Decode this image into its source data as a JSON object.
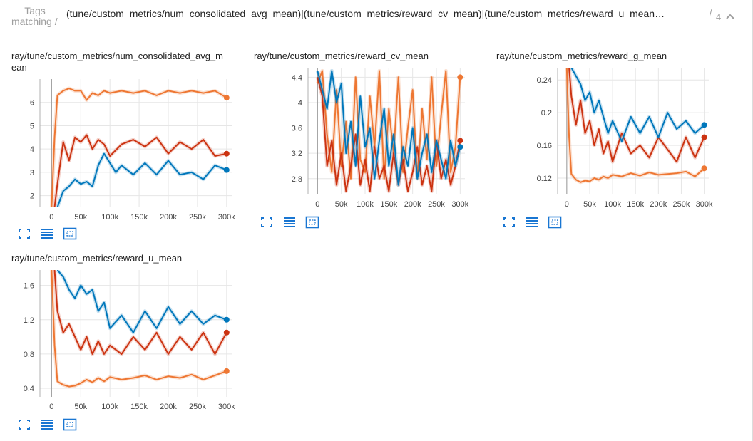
{
  "header": {
    "tags_label_line1": "Tags",
    "tags_label_line2": "matching /",
    "regex_value": "(tune/custom_metrics/num_consolidated_avg_mean)|(tune/custom_metrics/reward_cv_mean)|(tune/custom_metrics/reward_u_mean…",
    "slash": "/",
    "match_count": "4"
  },
  "colors": {
    "blue": "#0077bb",
    "red": "#cc3311",
    "orange": "#ee7733"
  },
  "icons": [
    "fullscreen-icon",
    "toggle-log-scale-icon",
    "fit-domain-icon"
  ],
  "chart_data": [
    {
      "type": "line",
      "title": "ray/tune/custom_metrics/num_consolidated_avg_mean",
      "title_line1": "ray/tune/custom_metrics/num_consolidated_avg_m",
      "title_line2": "ean",
      "xlim": [
        -20000,
        310000
      ],
      "ylim": [
        1.5,
        7.0
      ],
      "x_ticks": [
        0,
        50000,
        100000,
        150000,
        200000,
        250000,
        300000
      ],
      "x_tick_labels": [
        "0",
        "50k",
        "100k",
        "150k",
        "200k",
        "250k",
        "300k"
      ],
      "y_ticks": [
        2,
        3,
        4,
        5,
        6
      ],
      "y_tick_labels": [
        "2",
        "3",
        "4",
        "5",
        "6"
      ],
      "series": [
        {
          "color": "orange",
          "x": [
            0,
            5000,
            10000,
            20000,
            30000,
            40000,
            50000,
            60000,
            70000,
            80000,
            90000,
            100000,
            120000,
            140000,
            160000,
            180000,
            200000,
            220000,
            240000,
            260000,
            280000,
            300000
          ],
          "values": [
            1.5,
            4.5,
            6.3,
            6.5,
            6.6,
            6.5,
            6.5,
            6.1,
            6.4,
            6.3,
            6.5,
            6.4,
            6.5,
            6.4,
            6.5,
            6.3,
            6.5,
            6.4,
            6.5,
            6.4,
            6.5,
            6.2
          ]
        },
        {
          "color": "red",
          "x": [
            5000,
            10000,
            20000,
            30000,
            40000,
            50000,
            60000,
            70000,
            80000,
            90000,
            100000,
            120000,
            140000,
            160000,
            180000,
            200000,
            220000,
            240000,
            260000,
            280000,
            300000
          ],
          "values": [
            1.5,
            2.5,
            4.3,
            3.5,
            4.5,
            4.3,
            4.6,
            4.0,
            4.4,
            4.2,
            3.7,
            4.2,
            4.4,
            4.1,
            4.5,
            3.8,
            4.3,
            4.0,
            4.4,
            3.7,
            3.8
          ]
        },
        {
          "color": "blue",
          "x": [
            10000,
            20000,
            30000,
            40000,
            50000,
            60000,
            70000,
            80000,
            90000,
            100000,
            110000,
            120000,
            140000,
            160000,
            180000,
            200000,
            220000,
            240000,
            260000,
            280000,
            300000
          ],
          "values": [
            1.5,
            2.2,
            2.4,
            2.7,
            2.5,
            2.6,
            2.4,
            3.3,
            3.8,
            3.4,
            3.0,
            3.3,
            2.9,
            3.4,
            2.9,
            3.5,
            2.9,
            3.0,
            2.7,
            3.3,
            3.1
          ]
        }
      ]
    },
    {
      "type": "line",
      "title": "ray/tune/custom_metrics/reward_cv_mean",
      "xlim": [
        -20000,
        310000
      ],
      "ylim": [
        2.55,
        4.55
      ],
      "x_ticks": [
        0,
        50000,
        100000,
        150000,
        200000,
        250000,
        300000
      ],
      "x_tick_labels": [
        "0",
        "50k",
        "100k",
        "150k",
        "200k",
        "250k",
        "300k"
      ],
      "y_ticks": [
        2.8,
        3.2,
        3.6,
        4.0,
        4.4
      ],
      "y_tick_labels": [
        "2.8",
        "3.2",
        "3.6",
        "4",
        "4.4"
      ],
      "series": [
        {
          "color": "orange",
          "x": [
            0,
            10000,
            20000,
            30000,
            40000,
            50000,
            60000,
            70000,
            80000,
            90000,
            100000,
            110000,
            120000,
            130000,
            140000,
            150000,
            160000,
            170000,
            180000,
            190000,
            200000,
            210000,
            220000,
            230000,
            240000,
            250000,
            260000,
            270000,
            280000,
            290000,
            300000
          ],
          "values": [
            4.3,
            4.5,
            3.5,
            2.9,
            4.2,
            3.0,
            3.7,
            2.8,
            4.4,
            3.1,
            2.9,
            4.1,
            3.3,
            4.5,
            2.8,
            3.9,
            3.2,
            4.4,
            2.9,
            3.6,
            4.2,
            2.8,
            3.9,
            3.1,
            4.4,
            3.0,
            3.8,
            4.5,
            2.9,
            3.3,
            4.4
          ]
        },
        {
          "color": "red",
          "x": [
            0,
            10000,
            20000,
            30000,
            40000,
            50000,
            60000,
            70000,
            80000,
            90000,
            100000,
            110000,
            120000,
            130000,
            140000,
            150000,
            160000,
            170000,
            180000,
            190000,
            200000,
            210000,
            220000,
            230000,
            240000,
            250000,
            260000,
            270000,
            280000,
            290000,
            300000
          ],
          "values": [
            4.4,
            4.1,
            3.0,
            3.4,
            2.7,
            3.2,
            2.6,
            3.0,
            3.5,
            2.7,
            3.1,
            2.6,
            3.3,
            2.8,
            3.0,
            2.6,
            3.2,
            2.7,
            3.1,
            2.6,
            2.9,
            3.3,
            2.7,
            3.0,
            2.6,
            3.4,
            2.8,
            3.1,
            2.7,
            3.0,
            3.4
          ]
        },
        {
          "color": "blue",
          "x": [
            0,
            10000,
            20000,
            30000,
            40000,
            50000,
            60000,
            70000,
            80000,
            90000,
            100000,
            110000,
            120000,
            130000,
            140000,
            150000,
            160000,
            170000,
            180000,
            190000,
            200000,
            210000,
            220000,
            230000,
            240000,
            250000,
            260000,
            270000,
            280000,
            290000,
            300000
          ],
          "values": [
            4.5,
            4.2,
            3.9,
            4.5,
            4.0,
            4.3,
            3.2,
            3.7,
            3.0,
            4.1,
            3.3,
            3.6,
            2.8,
            3.4,
            3.9,
            3.0,
            3.5,
            2.7,
            3.3,
            3.0,
            3.6,
            2.8,
            3.2,
            3.5,
            2.9,
            3.4,
            3.1,
            2.8,
            3.4,
            3.0,
            3.3
          ]
        }
      ]
    },
    {
      "type": "line",
      "title": "ray/tune/custom_metrics/reward_g_mean",
      "xlim": [
        -20000,
        310000
      ],
      "ylim": [
        0.1,
        0.255
      ],
      "x_ticks": [
        0,
        50000,
        100000,
        150000,
        200000,
        250000,
        300000
      ],
      "x_tick_labels": [
        "0",
        "50k",
        "100k",
        "150k",
        "200k",
        "250k",
        "300k"
      ],
      "y_ticks": [
        0.12,
        0.16,
        0.2,
        0.24
      ],
      "y_tick_labels": [
        "0.12",
        "0.16",
        "0.2",
        "0.24"
      ],
      "series": [
        {
          "color": "orange",
          "x": [
            0,
            5000,
            10000,
            20000,
            30000,
            40000,
            50000,
            60000,
            70000,
            80000,
            90000,
            100000,
            120000,
            140000,
            160000,
            180000,
            200000,
            220000,
            240000,
            260000,
            280000,
            300000
          ],
          "values": [
            0.255,
            0.17,
            0.125,
            0.118,
            0.115,
            0.117,
            0.116,
            0.12,
            0.118,
            0.122,
            0.12,
            0.124,
            0.122,
            0.126,
            0.123,
            0.127,
            0.124,
            0.125,
            0.126,
            0.128,
            0.122,
            0.132
          ]
        },
        {
          "color": "red",
          "x": [
            5000,
            10000,
            20000,
            30000,
            40000,
            50000,
            60000,
            70000,
            80000,
            90000,
            100000,
            120000,
            140000,
            160000,
            180000,
            200000,
            220000,
            240000,
            260000,
            280000,
            300000
          ],
          "values": [
            0.255,
            0.22,
            0.185,
            0.215,
            0.175,
            0.19,
            0.16,
            0.18,
            0.15,
            0.165,
            0.14,
            0.175,
            0.15,
            0.16,
            0.145,
            0.17,
            0.155,
            0.14,
            0.17,
            0.145,
            0.17
          ]
        },
        {
          "color": "blue",
          "x": [
            10000,
            20000,
            30000,
            40000,
            50000,
            60000,
            70000,
            80000,
            90000,
            100000,
            120000,
            140000,
            160000,
            180000,
            200000,
            220000,
            240000,
            260000,
            280000,
            300000
          ],
          "values": [
            0.255,
            0.245,
            0.235,
            0.215,
            0.225,
            0.2,
            0.215,
            0.195,
            0.175,
            0.19,
            0.165,
            0.195,
            0.175,
            0.195,
            0.17,
            0.2,
            0.18,
            0.19,
            0.175,
            0.185
          ]
        }
      ]
    },
    {
      "type": "line",
      "title": "ray/tune/custom_metrics/reward_u_mean",
      "xlim": [
        -20000,
        310000
      ],
      "ylim": [
        0.3,
        1.78
      ],
      "x_ticks": [
        0,
        50000,
        100000,
        150000,
        200000,
        250000,
        300000
      ],
      "x_tick_labels": [
        "0",
        "50k",
        "100k",
        "150k",
        "200k",
        "250k",
        "300k"
      ],
      "y_ticks": [
        0.4,
        0.8,
        1.2,
        1.6
      ],
      "y_tick_labels": [
        "0.4",
        "0.8",
        "1.2",
        "1.6"
      ],
      "series": [
        {
          "color": "orange",
          "x": [
            0,
            5000,
            10000,
            20000,
            30000,
            40000,
            50000,
            60000,
            70000,
            80000,
            90000,
            100000,
            120000,
            140000,
            160000,
            180000,
            200000,
            220000,
            240000,
            260000,
            280000,
            300000
          ],
          "values": [
            1.78,
            0.9,
            0.48,
            0.44,
            0.42,
            0.43,
            0.46,
            0.5,
            0.47,
            0.52,
            0.48,
            0.53,
            0.5,
            0.52,
            0.55,
            0.5,
            0.54,
            0.52,
            0.56,
            0.5,
            0.55,
            0.6
          ]
        },
        {
          "color": "red",
          "x": [
            5000,
            10000,
            20000,
            30000,
            40000,
            50000,
            60000,
            70000,
            80000,
            90000,
            100000,
            120000,
            140000,
            160000,
            180000,
            200000,
            220000,
            240000,
            260000,
            280000,
            300000
          ],
          "values": [
            1.78,
            1.3,
            1.05,
            1.15,
            1.0,
            0.85,
            1.0,
            0.8,
            0.95,
            0.8,
            0.9,
            0.8,
            1.0,
            0.85,
            1.05,
            0.8,
            1.0,
            0.85,
            1.05,
            0.8,
            1.05
          ]
        },
        {
          "color": "blue",
          "x": [
            10000,
            20000,
            30000,
            40000,
            50000,
            60000,
            70000,
            80000,
            90000,
            100000,
            120000,
            140000,
            160000,
            180000,
            200000,
            220000,
            240000,
            260000,
            280000,
            300000
          ],
          "values": [
            1.78,
            1.7,
            1.55,
            1.45,
            1.6,
            1.5,
            1.55,
            1.3,
            1.4,
            1.1,
            1.25,
            1.05,
            1.3,
            1.1,
            1.35,
            1.15,
            1.3,
            1.15,
            1.25,
            1.2
          ]
        }
      ]
    }
  ]
}
